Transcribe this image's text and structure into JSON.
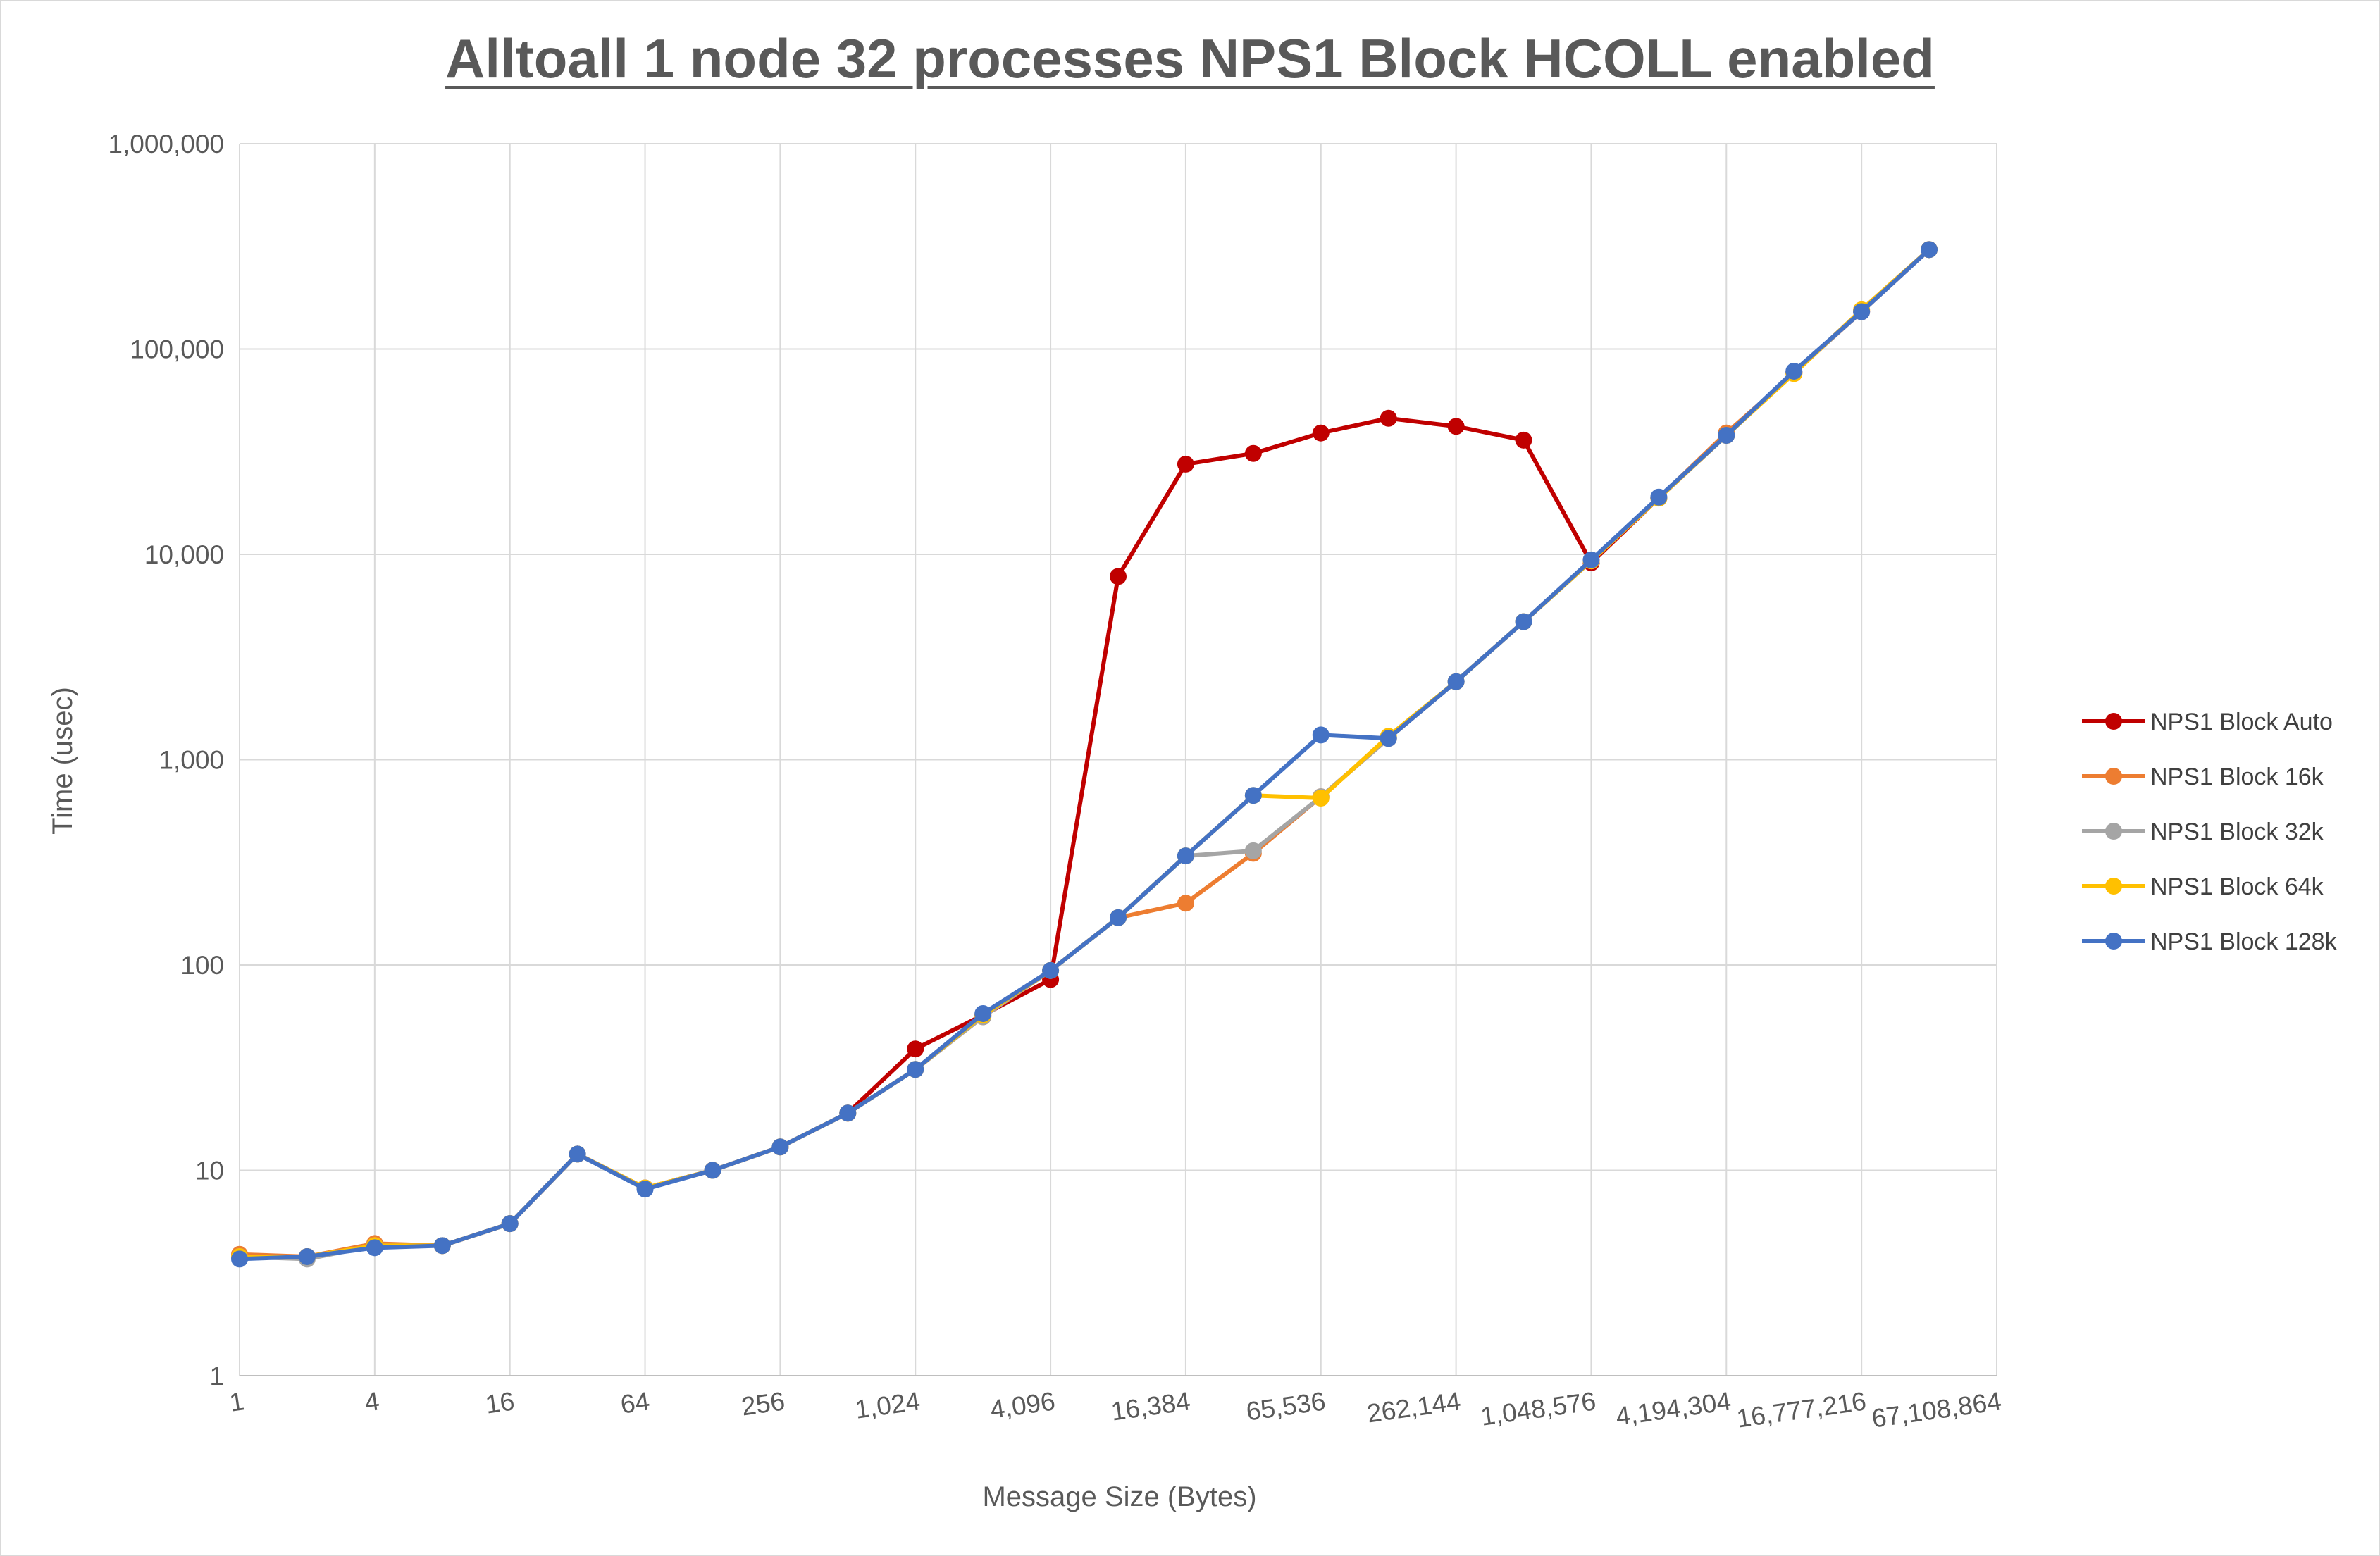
{
  "chart_data": {
    "type": "line",
    "title": "Alltoall 1 node 32 processes NPS1 Block HCOLL enabled",
    "xlabel": "Message Size (Bytes)",
    "ylabel": "Time (usec)",
    "x_scale": "log2",
    "y_scale": "log10",
    "ylim": [
      1,
      1000000
    ],
    "grid": true,
    "legend_position": "right",
    "x": [
      1,
      2,
      4,
      8,
      16,
      32,
      64,
      128,
      256,
      512,
      1024,
      2048,
      4096,
      8192,
      16384,
      32768,
      65536,
      131072,
      262144,
      524288,
      1048576,
      2097152,
      4194304,
      8388608,
      16777216,
      33554432
    ],
    "x_tick_labels": [
      "1",
      "4",
      "16",
      "64",
      "256",
      "1,024",
      "4,096",
      "16,384",
      "65,536",
      "262,144",
      "1,048,576",
      "4,194,304",
      "16,777,216",
      "67,108,864"
    ],
    "x_tick_values": [
      1,
      4,
      16,
      64,
      256,
      1024,
      4096,
      16384,
      65536,
      262144,
      1048576,
      4194304,
      16777216,
      67108864
    ],
    "y_tick_labels": [
      "1",
      "10",
      "100",
      "1,000",
      "10,000",
      "100,000",
      "1,000,000"
    ],
    "y_tick_values": [
      1,
      10,
      100,
      1000,
      10000,
      100000,
      1000000
    ],
    "series": [
      {
        "name": "NPS1 Block Auto",
        "color": "#c00000",
        "values": [
          3.8,
          3.8,
          4.3,
          4.3,
          5.5,
          12,
          8.2,
          10,
          13,
          19,
          39,
          57,
          85,
          7800,
          27500,
          31000,
          39000,
          46000,
          42000,
          36000,
          9100,
          18800,
          38000,
          77000,
          152000,
          305000
        ]
      },
      {
        "name": "NPS1 Block 16k",
        "color": "#ed7d31",
        "values": [
          3.9,
          3.8,
          4.4,
          4.3,
          5.5,
          12,
          8.2,
          10,
          13,
          19,
          31,
          56,
          94,
          170,
          200,
          350,
          660,
          1270,
          2400,
          4700,
          9300,
          18800,
          39000,
          76000,
          155000,
          305000
        ]
      },
      {
        "name": "NPS1 Block 32k",
        "color": "#a5a5a5",
        "values": [
          3.8,
          3.7,
          4.3,
          4.3,
          5.5,
          12,
          8.2,
          10,
          13,
          19,
          31,
          56,
          94,
          170,
          340,
          360,
          660,
          1270,
          2400,
          4700,
          9300,
          18800,
          38000,
          77000,
          152000,
          305000
        ]
      },
      {
        "name": "NPS1 Block 64k",
        "color": "#ffc000",
        "values": [
          3.8,
          3.8,
          4.3,
          4.3,
          5.5,
          12,
          8.2,
          10,
          13,
          19,
          31,
          57,
          94,
          170,
          340,
          670,
          650,
          1300,
          2400,
          4700,
          9300,
          18800,
          38000,
          76000,
          155000,
          305000
        ]
      },
      {
        "name": "NPS1 Block 128k",
        "color": "#4472c4",
        "values": [
          3.7,
          3.8,
          4.2,
          4.3,
          5.5,
          12,
          8.1,
          10,
          13,
          19,
          31,
          58,
          94,
          170,
          340,
          670,
          1320,
          1270,
          2400,
          4700,
          9400,
          19000,
          38000,
          78000,
          152000,
          305000
        ]
      }
    ]
  }
}
